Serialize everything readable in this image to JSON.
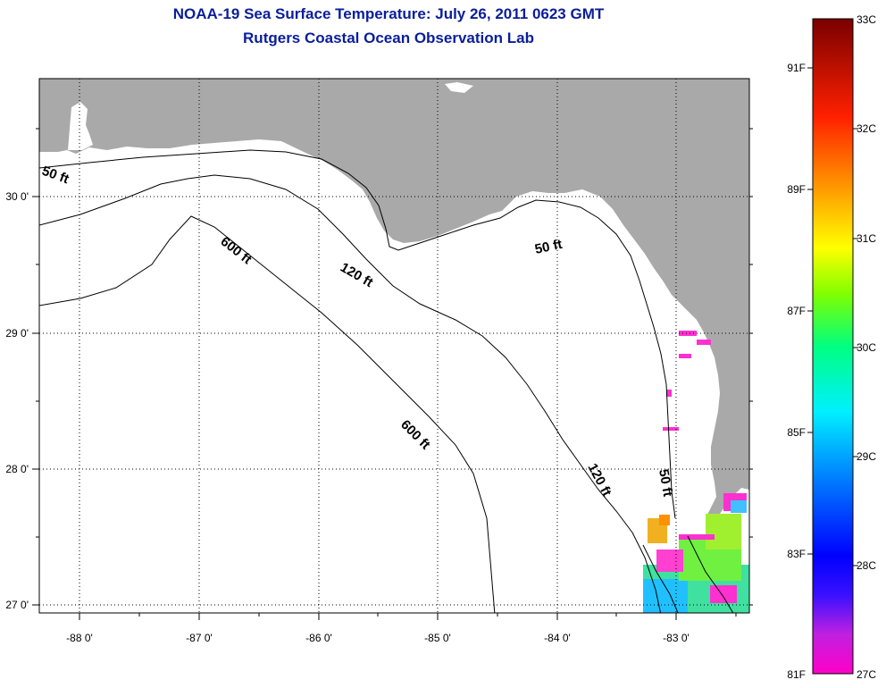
{
  "header": {
    "title": "NOAA-19 Sea Surface Temperature:  July 26, 2011 0623 GMT",
    "subtitle": "Rutgers Coastal Ocean Observation Lab"
  },
  "map": {
    "lon_ticks": [
      "-88 0'",
      "-87 0'",
      "-86 0'",
      "-85 0'",
      "-84 0'",
      "-83 0'"
    ],
    "lat_ticks": [
      "30 0'",
      "29 0'",
      "28 0'",
      "27 0'"
    ],
    "contour_labels": [
      "50 ft",
      "50 ft",
      "50 ft",
      "120 ft",
      "120 ft",
      "600 ft",
      "600 ft"
    ],
    "colors": {
      "land": "#a9a9a9",
      "ocean": "#ffffff",
      "contour": "#000000"
    }
  },
  "colorbar": {
    "fahrenheit_labels": [
      "91F",
      "89F",
      "87F",
      "85F",
      "83F",
      "81F"
    ],
    "celsius_labels": [
      "33C",
      "32C",
      "31C",
      "30C",
      "29C",
      "28C",
      "27C"
    ]
  }
}
